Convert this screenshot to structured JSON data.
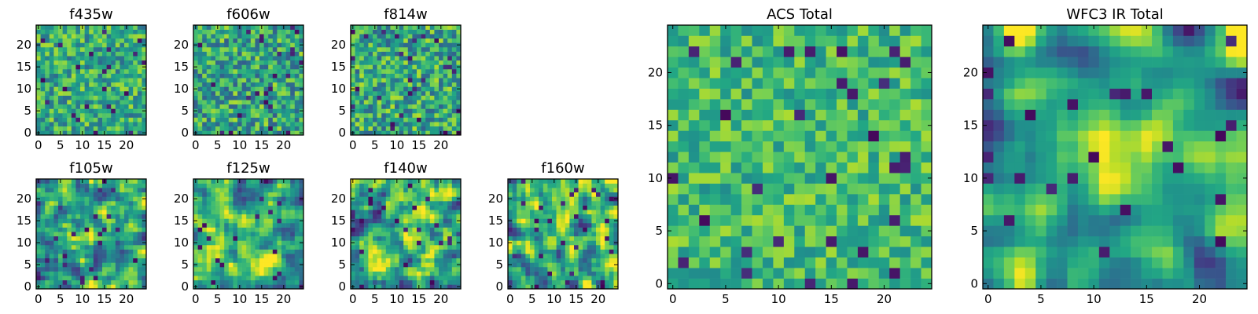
{
  "chart_data": {
    "type": "heatmap",
    "colormap": "viridis",
    "panels": [
      {
        "id": "f435w",
        "title": "f435w",
        "size": 25,
        "xticks": [
          0,
          5,
          10,
          15,
          20
        ],
        "yticks": [
          0,
          5,
          10,
          15,
          20
        ],
        "seed": 11,
        "smooth": 0,
        "bright": 0.62,
        "spread": 0.15
      },
      {
        "id": "f606w",
        "title": "f606w",
        "size": 25,
        "xticks": [
          0,
          5,
          10,
          15,
          20
        ],
        "yticks": [
          0,
          5,
          10,
          15,
          20
        ],
        "seed": 23,
        "smooth": 0,
        "bright": 0.58,
        "spread": 0.17
      },
      {
        "id": "f814w",
        "title": "f814w",
        "size": 25,
        "xticks": [
          0,
          5,
          10,
          15,
          20
        ],
        "yticks": [
          0,
          5,
          10,
          15,
          20
        ],
        "seed": 37,
        "smooth": 0,
        "bright": 0.6,
        "spread": 0.17
      },
      {
        "id": "f105w",
        "title": "f105w",
        "size": 25,
        "xticks": [
          0,
          5,
          10,
          15,
          20
        ],
        "yticks": [
          0,
          5,
          10,
          15,
          20
        ],
        "seed": 41,
        "smooth": 1,
        "bright": 0.55,
        "spread": 0.18,
        "peak": [
          12,
          13
        ]
      },
      {
        "id": "f125w",
        "title": "f125w",
        "size": 25,
        "xticks": [
          0,
          5,
          10,
          15,
          20
        ],
        "yticks": [
          0,
          5,
          10,
          15,
          20
        ],
        "seed": 53,
        "smooth": 1,
        "bright": 0.6,
        "spread": 0.18,
        "peak": [
          14,
          5
        ]
      },
      {
        "id": "f140w",
        "title": "f140w",
        "size": 25,
        "xticks": [
          0,
          5,
          10,
          15,
          20
        ],
        "yticks": [
          0,
          5,
          10,
          15,
          20
        ],
        "seed": 67,
        "smooth": 1,
        "bright": 0.6,
        "spread": 0.2,
        "peak": [
          15,
          16
        ]
      },
      {
        "id": "f160w",
        "title": "f160w",
        "size": 25,
        "xticks": [
          0,
          5,
          10,
          15,
          20
        ],
        "yticks": [
          0,
          5,
          10,
          15,
          20
        ],
        "seed": 79,
        "smooth": 1,
        "bright": 0.62,
        "spread": 0.2,
        "peak": [
          10,
          15
        ]
      },
      {
        "id": "acs-total",
        "title": "ACS Total",
        "size": 25,
        "xticks": [
          0,
          5,
          10,
          15,
          20
        ],
        "yticks": [
          0,
          5,
          10,
          15,
          20
        ],
        "seed": 97,
        "smooth": 0,
        "bright": 0.68,
        "spread": 0.12
      },
      {
        "id": "wfc3-ir-total",
        "title": "WFC3 IR Total",
        "size": 25,
        "xticks": [
          0,
          5,
          10,
          15,
          20
        ],
        "yticks": [
          0,
          5,
          10,
          15,
          20
        ],
        "seed": 113,
        "smooth": 2,
        "bright": 0.58,
        "spread": 0.16,
        "peak": [
          12,
          12
        ]
      }
    ]
  }
}
